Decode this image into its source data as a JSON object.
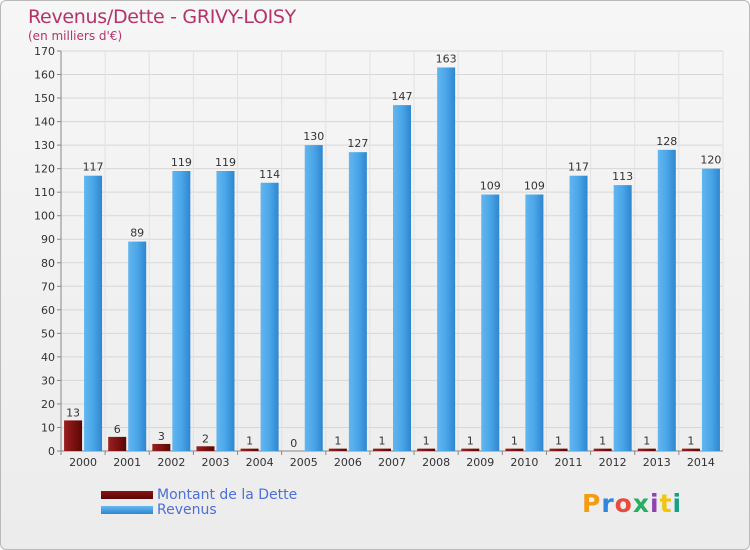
{
  "header": {
    "title": "Revenus/Dette - GRIVY-LOISY",
    "subtitle": "(en milliers d'€)"
  },
  "chart_data": {
    "type": "bar",
    "title": "Revenus/Dette - GRIVY-LOISY",
    "ylabel": "(en milliers d'€)",
    "xlabel": "",
    "ylim": [
      0,
      170
    ],
    "yticks": [
      0,
      10,
      20,
      30,
      40,
      50,
      60,
      70,
      80,
      90,
      100,
      110,
      120,
      130,
      140,
      150,
      160,
      170
    ],
    "grid": true,
    "categories": [
      "2000",
      "2001",
      "2002",
      "2003",
      "2004",
      "2005",
      "2006",
      "2007",
      "2008",
      "2009",
      "2010",
      "2011",
      "2012",
      "2013",
      "2014"
    ],
    "series": [
      {
        "name": "Montant de la Dette",
        "color": "#7a1010",
        "values": [
          13,
          6,
          3,
          2,
          1,
          0,
          1,
          1,
          1,
          1,
          1,
          1,
          1,
          1,
          1
        ]
      },
      {
        "name": "Revenus",
        "color": "#3d9be0",
        "values": [
          117,
          89,
          119,
          119,
          114,
          130,
          127,
          147,
          163,
          109,
          109,
          117,
          113,
          128,
          120
        ]
      }
    ],
    "legend_position": "bottom-left"
  },
  "legend": {
    "items": [
      {
        "label": "Montant de la Dette",
        "color": "#6a0a0a"
      },
      {
        "label": "Revenus",
        "color": "#3d9be0"
      }
    ]
  },
  "logo": {
    "text": "Proxiti"
  }
}
